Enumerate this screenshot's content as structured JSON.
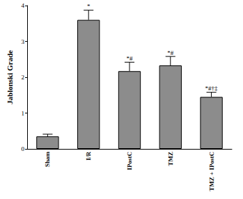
{
  "chart_data": {
    "type": "bar",
    "y_label": "Jablonski Grade",
    "categories": [
      "Sham",
      "I/R",
      "IPostC",
      "TMZ",
      "TMZ + IPostC"
    ],
    "values": [
      0.35,
      3.6,
      2.17,
      2.33,
      1.45
    ],
    "errors": [
      0.06,
      0.27,
      0.25,
      0.25,
      0.13
    ],
    "annotations": [
      null,
      "*",
      "*#",
      "*#",
      "*#†‡"
    ],
    "color": "#8c8c8c",
    "ylim": [
      0,
      4
    ],
    "yticks": [
      0,
      1,
      2,
      3,
      4
    ],
    "grid": false
  }
}
